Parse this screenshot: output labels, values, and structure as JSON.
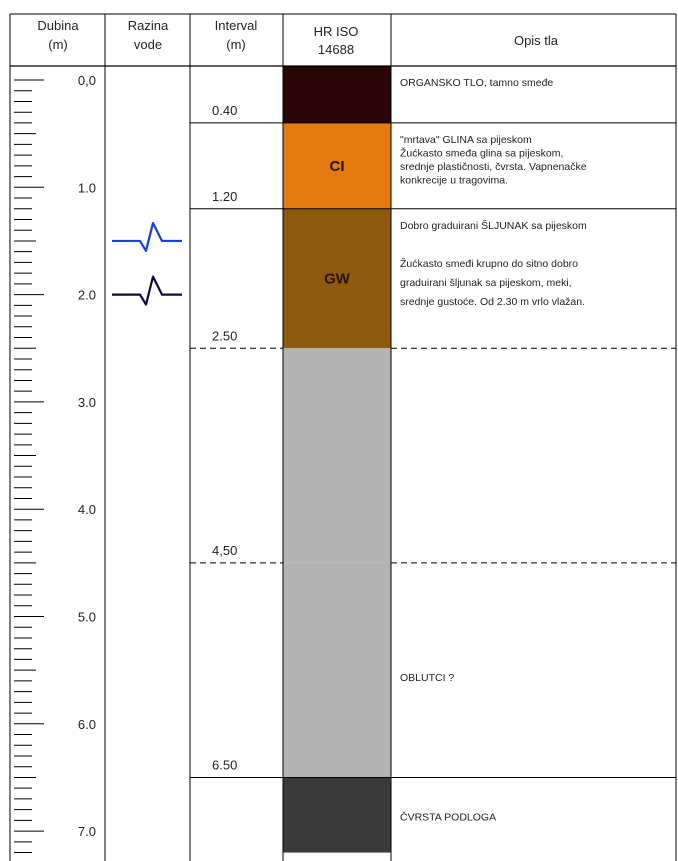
{
  "headers": {
    "depth": [
      "Dubina",
      "(m)"
    ],
    "water": [
      "Razina",
      "vode"
    ],
    "interval": [
      "Interval",
      "(m)"
    ],
    "iso": [
      "HR ISO",
      "14688"
    ],
    "description": "Opis tla"
  },
  "depth_scale": {
    "min": 0,
    "max": 7.0,
    "labels": [
      "0,0",
      "1.0",
      "2.0",
      "3.0",
      "4.0",
      "5.0",
      "6.0",
      "7.0"
    ],
    "minor_step": 0.1
  },
  "water_levels": [
    {
      "depth": 1.5,
      "color": "#1a3fe0"
    },
    {
      "depth": 2.0,
      "color": "#0a0a40"
    }
  ],
  "layers": [
    {
      "top": 0.0,
      "bottom": 0.4,
      "interval_label": "0.40",
      "color": "#2a0606",
      "code": "",
      "description": [
        "ORGANSKO TLO, tamno smeđe"
      ],
      "boundary": "solid"
    },
    {
      "top": 0.4,
      "bottom": 1.2,
      "interval_label": "1.20",
      "color": "#e47a10",
      "code": "CI",
      "description": [
        "\"mrtava\" GLINA sa pijeskom",
        "Žućkasto smeđa glina sa pijeskom,",
        "srednje plastičnosti, čvrsta. Vapnenačke",
        "konkrecije u tragovima."
      ],
      "boundary": "solid"
    },
    {
      "top": 1.2,
      "bottom": 2.5,
      "interval_label": "2.50",
      "color": "#8e5a10",
      "code": "GW",
      "description": [
        "Dobro graduirani ŠLJUNAK sa pijeskom",
        "",
        "Žućkasto smeđi krupno do sitno dobro",
        "graduirani šljunak sa pijeskom, meki,",
        "srednje gustoće. Od 2.30 m vrlo vlažan."
      ],
      "boundary": "dashed"
    },
    {
      "top": 2.5,
      "bottom": 4.5,
      "interval_label": "4,50",
      "color": "#b3b3b3",
      "code": "",
      "description": [],
      "boundary": "dashed"
    },
    {
      "top": 4.5,
      "bottom": 6.5,
      "interval_label": "6.50",
      "color": "#b3b3b3",
      "code": "",
      "description": [
        "OBLUTCI ?"
      ],
      "boundary": "solid"
    },
    {
      "top": 6.5,
      "bottom": 7.2,
      "interval_label": "",
      "color": "#3a3a3a",
      "code": "",
      "description": [
        "ČVRSTA PODLOGA"
      ],
      "boundary": "none"
    }
  ]
}
